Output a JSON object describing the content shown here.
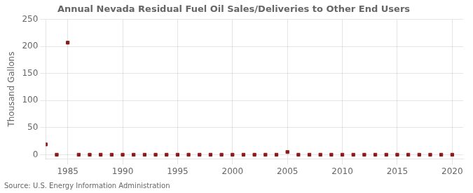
{
  "chart_data": {
    "type": "scatter",
    "title": "Annual Nevada Residual Fuel Oil Sales/Deliveries to Other End Users",
    "ylabel": "Thousand Gallons",
    "source": "Source: U.S. Energy Information Administration",
    "x": [
      1983,
      1984,
      1985,
      1986,
      1987,
      1988,
      1989,
      1990,
      1991,
      1992,
      1993,
      1994,
      1995,
      1996,
      1997,
      1998,
      1999,
      2000,
      2001,
      2002,
      2003,
      2004,
      2005,
      2006,
      2007,
      2008,
      2009,
      2010,
      2011,
      2012,
      2013,
      2014,
      2015,
      2016,
      2017,
      2018,
      2019,
      2020
    ],
    "values": [
      19,
      0,
      207,
      0,
      0,
      0,
      0,
      0,
      0,
      0,
      0,
      0,
      0,
      0,
      0,
      0,
      0,
      0,
      0,
      0,
      0,
      0,
      5,
      0,
      0,
      0,
      0,
      0,
      0,
      0,
      0,
      0,
      0,
      0,
      0,
      0,
      0,
      0
    ],
    "color": "#8b1a1a",
    "marker": "square",
    "xlim": [
      1983,
      2021
    ],
    "xticks": [
      1985,
      1990,
      1995,
      2000,
      2005,
      2010,
      2015,
      2020
    ],
    "ylim": [
      -8,
      250
    ],
    "yticks": [
      0,
      50,
      100,
      150,
      200,
      250
    ],
    "grid": true
  }
}
